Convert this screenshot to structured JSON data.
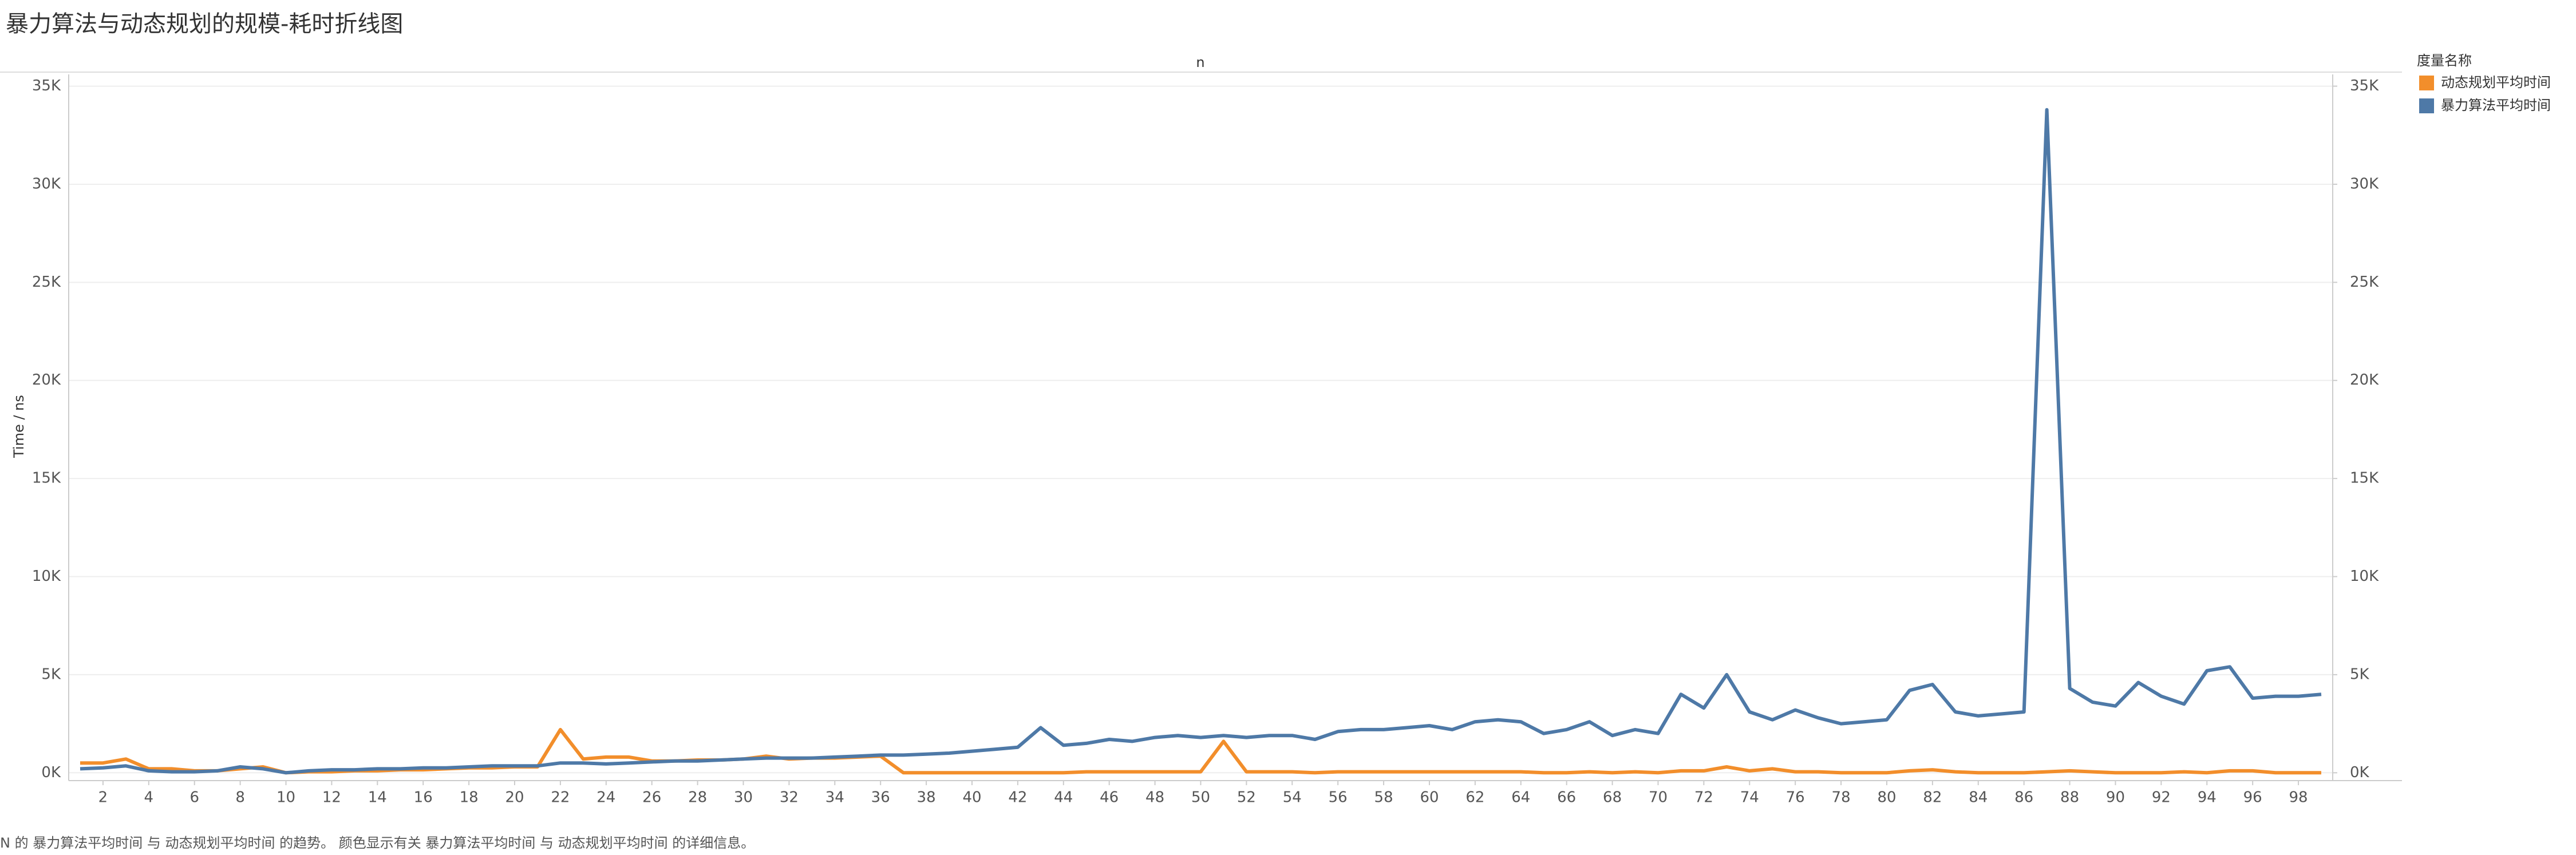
{
  "chart_data": {
    "type": "line",
    "title": "暴力算法与动态规划的规模-耗时折线图",
    "x_label": "n",
    "y_label": "Time / ns",
    "legend_title": "度量名称",
    "legend_position": "top-right",
    "footnote": "N 的 暴力算法平均时间 与 动态规划平均时间 的趋势。 颜色显示有关 暴力算法平均时间 与 动态规划平均时间 的详细信息。",
    "grid": true,
    "x": [
      1,
      2,
      3,
      4,
      5,
      6,
      7,
      8,
      9,
      10,
      11,
      12,
      13,
      14,
      15,
      16,
      17,
      18,
      19,
      20,
      21,
      22,
      23,
      24,
      25,
      26,
      27,
      28,
      29,
      30,
      31,
      32,
      33,
      34,
      35,
      36,
      37,
      38,
      39,
      40,
      41,
      42,
      43,
      44,
      45,
      46,
      47,
      48,
      49,
      50,
      51,
      52,
      53,
      54,
      55,
      56,
      57,
      58,
      59,
      60,
      61,
      62,
      63,
      64,
      65,
      66,
      67,
      68,
      69,
      70,
      71,
      72,
      73,
      74,
      75,
      76,
      77,
      78,
      79,
      80,
      81,
      82,
      83,
      84,
      85,
      86,
      87,
      88,
      89,
      90,
      91,
      92,
      93,
      94,
      95,
      96,
      97,
      98,
      99
    ],
    "xlim": [
      0.5,
      99.5
    ],
    "xticks": [
      2,
      4,
      6,
      8,
      10,
      12,
      14,
      16,
      18,
      20,
      22,
      24,
      26,
      28,
      30,
      32,
      34,
      36,
      38,
      40,
      42,
      44,
      46,
      48,
      50,
      52,
      54,
      56,
      58,
      60,
      62,
      64,
      66,
      68,
      70,
      72,
      74,
      76,
      78,
      80,
      82,
      84,
      86,
      88,
      90,
      92,
      94,
      96,
      98
    ],
    "ylim": [
      -400,
      35600
    ],
    "yticks": [
      {
        "value": 0,
        "label": "0K"
      },
      {
        "value": 5000,
        "label": "5K"
      },
      {
        "value": 10000,
        "label": "10K"
      },
      {
        "value": 15000,
        "label": "15K"
      },
      {
        "value": 20000,
        "label": "20K"
      },
      {
        "value": 25000,
        "label": "25K"
      },
      {
        "value": 30000,
        "label": "30K"
      },
      {
        "value": 35000,
        "label": "35K"
      }
    ],
    "y2lim": [
      -400,
      35600
    ],
    "y2ticks": [
      {
        "value": 0,
        "label": "0K"
      },
      {
        "value": 5000,
        "label": "5K"
      },
      {
        "value": 10000,
        "label": "10K"
      },
      {
        "value": 15000,
        "label": "15K"
      },
      {
        "value": 20000,
        "label": "20K"
      },
      {
        "value": 25000,
        "label": "25K"
      },
      {
        "value": 30000,
        "label": "30K"
      },
      {
        "value": 35000,
        "label": "35K"
      }
    ],
    "series": [
      {
        "name": "动态规划平均时间",
        "color": "#f28e2b",
        "values": [
          500,
          500,
          700,
          200,
          200,
          100,
          100,
          200,
          300,
          0,
          50,
          50,
          100,
          100,
          150,
          150,
          200,
          250,
          250,
          300,
          300,
          2200,
          700,
          800,
          800,
          600,
          600,
          650,
          650,
          700,
          850,
          700,
          750,
          750,
          800,
          850,
          0,
          0,
          0,
          0,
          0,
          0,
          0,
          0,
          50,
          50,
          50,
          50,
          50,
          50,
          1600,
          50,
          50,
          50,
          0,
          50,
          50,
          50,
          50,
          50,
          50,
          50,
          50,
          50,
          0,
          0,
          50,
          0,
          50,
          0,
          100,
          100,
          300,
          100,
          200,
          50,
          50,
          0,
          0,
          0,
          100,
          150,
          50,
          0,
          0,
          0,
          50,
          100,
          50,
          0,
          0,
          0,
          50,
          0,
          100,
          100,
          0,
          0,
          0
        ]
      },
      {
        "name": "暴力算法平均时间",
        "color": "#4e79a7",
        "axis": "y2",
        "values": [
          200,
          250,
          350,
          100,
          50,
          50,
          100,
          300,
          200,
          0,
          100,
          150,
          150,
          200,
          200,
          250,
          250,
          300,
          350,
          350,
          350,
          500,
          500,
          450,
          500,
          550,
          600,
          600,
          650,
          700,
          750,
          750,
          750,
          800,
          850,
          900,
          900,
          950,
          1000,
          1100,
          1200,
          1300,
          2300,
          1400,
          1500,
          1700,
          1600,
          1800,
          1900,
          1800,
          1900,
          1800,
          1900,
          1900,
          1700,
          2100,
          2200,
          2200,
          2300,
          2400,
          2200,
          2600,
          2700,
          2600,
          2000,
          2200,
          2600,
          1900,
          2200,
          2000,
          4000,
          3300,
          5000,
          3100,
          2700,
          3200,
          2800,
          2500,
          2600,
          2700,
          4200,
          4500,
          3100,
          2900,
          3000,
          3100,
          33800,
          4300,
          3600,
          3400,
          4600,
          3900,
          3500,
          5200,
          5400,
          3800,
          3900,
          3900,
          4000
        ]
      }
    ]
  }
}
